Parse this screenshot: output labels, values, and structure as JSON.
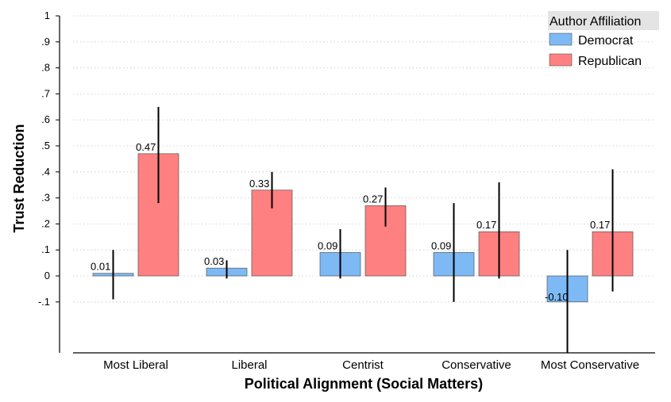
{
  "chart_data": {
    "type": "bar",
    "xlabel": "Political Alignment (Social Matters)",
    "ylabel": "Trust Reduction",
    "ylim": [
      -0.1,
      1
    ],
    "yticks": [
      {
        "value": -0.1,
        "label": "-.1"
      },
      {
        "value": 0,
        "label": "0"
      },
      {
        "value": 0.1,
        "label": ".1"
      },
      {
        "value": 0.2,
        "label": ".2"
      },
      {
        "value": 0.3,
        "label": ".3"
      },
      {
        "value": 0.4,
        "label": ".4"
      },
      {
        "value": 0.5,
        "label": ".5"
      },
      {
        "value": 0.6,
        "label": ".6"
      },
      {
        "value": 0.7,
        "label": ".7"
      },
      {
        "value": 0.8,
        "label": ".8"
      },
      {
        "value": 0.9,
        "label": ".9"
      },
      {
        "value": 1,
        "label": "1"
      }
    ],
    "grid": true,
    "legend": {
      "title": "Author Affiliation",
      "position": "top-right"
    },
    "categories": [
      "Most Liberal",
      "Liberal",
      "Centrist",
      "Conservative",
      "Most Conservative"
    ],
    "series": [
      {
        "name": "Democrat",
        "color": "#7db9f5",
        "values": [
          0.01,
          0.03,
          0.09,
          0.09,
          -0.1
        ],
        "labels": [
          "0.01",
          "0.03",
          "0.09",
          "0.09",
          "-0.10"
        ],
        "ci": [
          [
            -0.09,
            0.1
          ],
          [
            -0.01,
            0.06
          ],
          [
            -0.01,
            0.18
          ],
          [
            -0.1,
            0.28
          ],
          [
            -0.3,
            0.1
          ]
        ]
      },
      {
        "name": "Republican",
        "color": "#ff8080",
        "values": [
          0.47,
          0.33,
          0.27,
          0.17,
          0.17
        ],
        "labels": [
          "0.47",
          "0.33",
          "0.27",
          "0.17",
          "0.17"
        ],
        "ci": [
          [
            0.28,
            0.65
          ],
          [
            0.26,
            0.4
          ],
          [
            0.19,
            0.34
          ],
          [
            -0.01,
            0.36
          ],
          [
            -0.06,
            0.41
          ]
        ]
      }
    ]
  }
}
